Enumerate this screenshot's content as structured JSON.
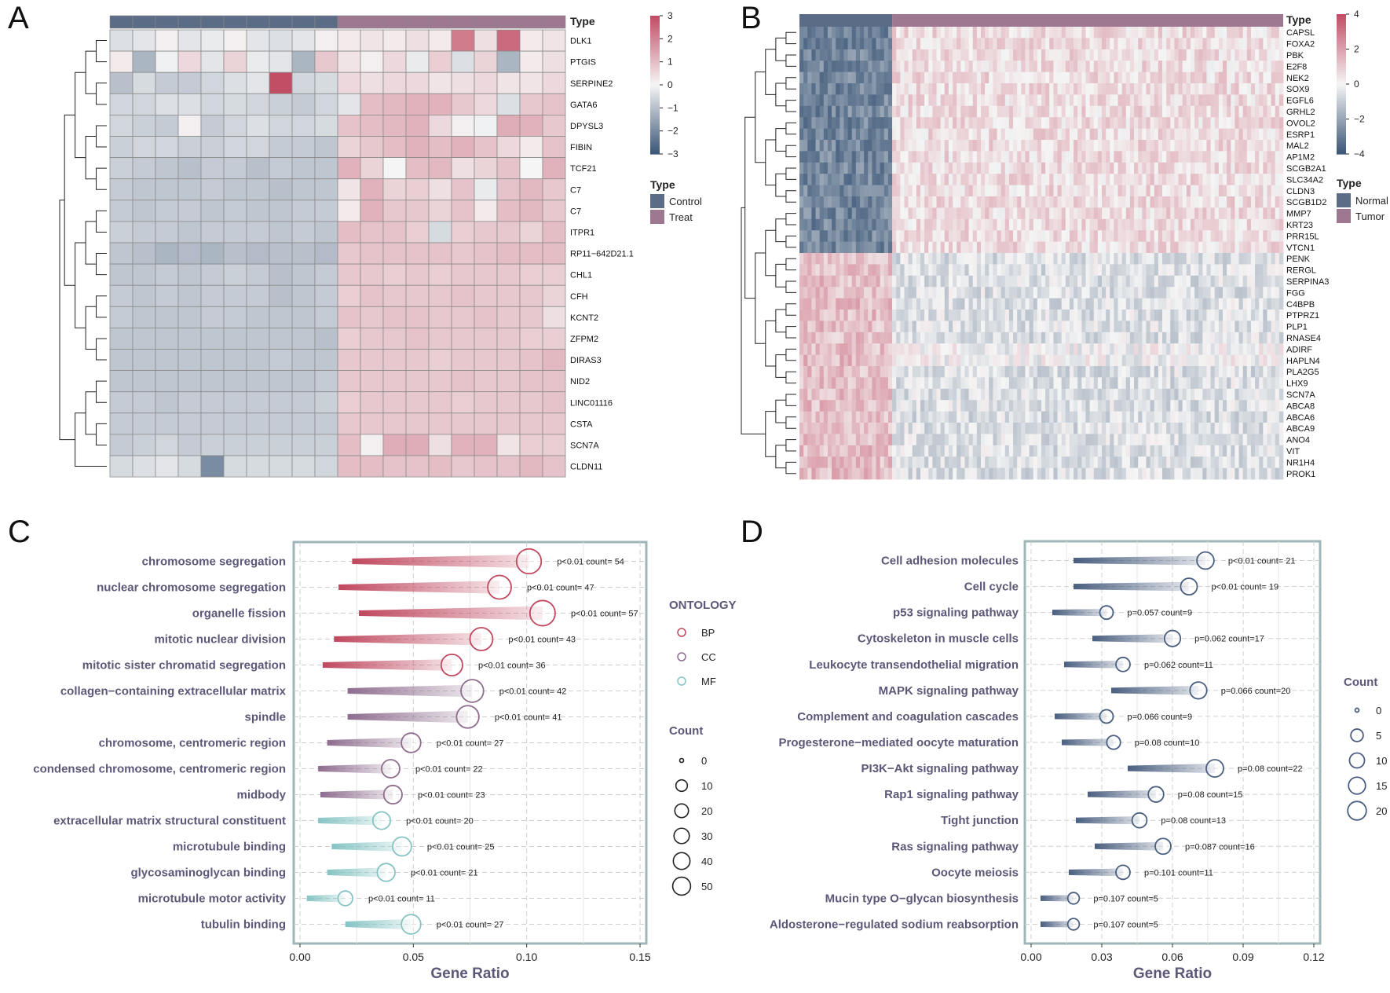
{
  "panels": {
    "a": "A",
    "b": "B",
    "c": "C",
    "d": "D"
  },
  "chart_data": [
    {
      "panel": "A",
      "type": "heatmap",
      "column_annotation_title": "Type",
      "groups": [
        {
          "name": "Control",
          "color": "#5b6d86",
          "n": 10
        },
        {
          "name": "Treat",
          "color": "#9e7890",
          "n": 10
        }
      ],
      "genes": [
        "DLK1",
        "PTGIS",
        "SERPINE2",
        "GATA6",
        "DPYSL3",
        "FIBIN",
        "TCF21",
        "C7",
        "C7",
        "ITPR1",
        "RP11−642D21.1",
        "CHL1",
        "CFH",
        "KCNT2",
        "ZFPM2",
        "DIRAS3",
        "NID2",
        "LINC01116",
        "CSTA",
        "SCN7A",
        "CLDN11"
      ],
      "values": [
        [
          -0.4,
          -0.3,
          0.1,
          -0.3,
          -0.2,
          0.1,
          -0.3,
          -0.4,
          -0.3,
          0.1,
          0.2,
          0.3,
          0.2,
          0.4,
          0.2,
          2.2,
          0.4,
          2.5,
          0.2,
          0.3
        ],
        [
          0.2,
          -1.2,
          -0.1,
          0.5,
          -0.3,
          0.6,
          -0.2,
          -0.3,
          -1.2,
          0.8,
          0.3,
          0.1,
          0.5,
          -0.2,
          0.7,
          -0.4,
          0.6,
          -1.2,
          0.2,
          0.4
        ],
        [
          -1.0,
          -0.5,
          -0.8,
          -0.8,
          -0.6,
          -0.4,
          -0.3,
          3.0,
          -0.6,
          -0.5,
          0.5,
          0.4,
          0.5,
          0.5,
          0.3,
          0.4,
          0.5,
          0.3,
          0.3,
          0.5
        ],
        [
          -0.6,
          -0.6,
          -0.4,
          -0.4,
          -0.6,
          -0.5,
          -0.6,
          -0.7,
          -0.8,
          -0.6,
          -0.3,
          1.0,
          1.1,
          1.2,
          1.2,
          0.8,
          0.5,
          -0.4,
          0.8,
          0.9
        ],
        [
          -0.6,
          -0.7,
          -0.8,
          0.1,
          -0.8,
          -0.6,
          -0.4,
          -0.6,
          -0.6,
          -0.5,
          0.9,
          1.0,
          1.1,
          1.2,
          0.5,
          0.1,
          -0.1,
          1.3,
          1.2,
          0.8
        ],
        [
          -0.7,
          -0.6,
          -0.6,
          -0.7,
          -0.7,
          -0.6,
          -0.6,
          -0.8,
          -0.8,
          -0.9,
          0.6,
          0.8,
          1.0,
          1.2,
          1.0,
          1.2,
          0.9,
          0.5,
          0.2,
          0.9
        ],
        [
          -0.7,
          -0.8,
          -0.9,
          -1.0,
          -0.8,
          -0.8,
          -1.0,
          -0.8,
          -0.9,
          -0.9,
          1.2,
          0.6,
          0.0,
          1.0,
          1.1,
          0.4,
          0.6,
          0.9,
          0.0,
          1.2
        ],
        [
          -0.8,
          -0.9,
          -0.9,
          -0.9,
          -0.8,
          -0.9,
          -0.9,
          -1.0,
          -0.9,
          -0.9,
          0.3,
          1.2,
          0.6,
          0.7,
          0.4,
          0.9,
          -0.2,
          0.9,
          1.1,
          0.8
        ],
        [
          -0.8,
          -0.9,
          -0.8,
          -0.8,
          -0.9,
          -0.8,
          -0.9,
          -0.9,
          -0.8,
          -0.8,
          0.2,
          1.2,
          0.8,
          0.8,
          0.6,
          0.9,
          0.2,
          1.0,
          1.1,
          0.8
        ],
        [
          -0.7,
          -0.8,
          -0.8,
          -0.9,
          -0.8,
          -0.8,
          -0.8,
          -0.9,
          -0.8,
          -0.9,
          1.0,
          0.9,
          0.9,
          0.7,
          -0.5,
          0.7,
          0.8,
          0.8,
          0.6,
          1.0
        ],
        [
          -0.9,
          -1.0,
          -1.2,
          -1.1,
          -1.2,
          -1.0,
          -1.1,
          -1.0,
          -1.0,
          -1.1,
          0.8,
          0.9,
          0.9,
          0.9,
          0.9,
          0.8,
          0.9,
          1.0,
          1.0,
          1.0
        ],
        [
          -0.9,
          -0.9,
          -0.8,
          -0.9,
          -0.8,
          -0.7,
          -0.8,
          -1.0,
          -0.9,
          -0.8,
          0.8,
          0.8,
          0.7,
          0.8,
          0.7,
          0.8,
          0.8,
          0.8,
          0.7,
          0.7
        ],
        [
          -0.8,
          -0.9,
          -0.8,
          -0.9,
          -0.8,
          -0.8,
          -0.8,
          -1.0,
          -0.9,
          -0.8,
          0.7,
          0.9,
          0.8,
          0.8,
          0.8,
          0.9,
          0.8,
          0.8,
          0.8,
          0.6
        ],
        [
          -0.8,
          -0.9,
          -0.9,
          -0.9,
          -0.8,
          -0.8,
          -0.9,
          -0.9,
          -0.9,
          -0.8,
          0.9,
          0.8,
          0.9,
          0.9,
          0.8,
          0.8,
          0.9,
          0.8,
          0.8,
          0.4
        ],
        [
          -0.9,
          -0.9,
          -0.9,
          -0.9,
          -0.9,
          -0.9,
          -0.9,
          -0.9,
          -0.9,
          -1.0,
          0.7,
          0.8,
          0.8,
          0.9,
          0.8,
          0.8,
          0.8,
          0.8,
          0.7,
          0.7
        ],
        [
          -0.9,
          -0.9,
          -0.9,
          -0.9,
          -0.9,
          -0.9,
          -0.9,
          -0.8,
          -0.9,
          -0.9,
          0.8,
          0.8,
          0.8,
          0.8,
          0.7,
          0.8,
          0.8,
          0.8,
          0.9,
          1.1
        ],
        [
          -0.9,
          -0.9,
          -0.9,
          -0.9,
          -0.9,
          -0.9,
          -0.9,
          -0.9,
          -0.9,
          -0.8,
          0.8,
          0.8,
          0.8,
          0.8,
          0.8,
          0.9,
          0.8,
          0.8,
          0.9,
          0.9
        ],
        [
          -0.8,
          -0.8,
          -0.9,
          -0.8,
          -0.8,
          -0.8,
          -0.8,
          -0.8,
          -0.8,
          -0.7,
          0.7,
          0.8,
          0.8,
          0.8,
          0.8,
          0.7,
          0.8,
          0.8,
          0.8,
          0.9
        ],
        [
          -0.8,
          -0.8,
          -0.8,
          -0.8,
          -0.8,
          -0.8,
          -0.8,
          -0.8,
          -0.8,
          -0.8,
          0.8,
          0.8,
          0.8,
          0.8,
          0.8,
          0.8,
          0.8,
          0.8,
          0.8,
          0.8
        ],
        [
          -0.8,
          -0.7,
          -0.6,
          -0.8,
          -0.7,
          -0.7,
          -0.7,
          -0.7,
          -0.7,
          -0.7,
          1.0,
          0.1,
          1.3,
          1.3,
          0.4,
          1.2,
          1.2,
          0.3,
          0.7,
          0.7
        ],
        [
          -0.5,
          -0.4,
          -0.3,
          -0.5,
          -2.0,
          -0.5,
          -0.5,
          -0.5,
          -0.5,
          -0.6,
          1.0,
          1.0,
          0.9,
          0.9,
          1.0,
          0.8,
          0.9,
          0.9,
          1.1,
          0.9
        ]
      ],
      "colorbar": {
        "ticks": [
          "3",
          "2",
          "1",
          "0",
          "−1",
          "−2",
          "−3"
        ],
        "min": -3,
        "max": 3
      },
      "colors": {
        "low": "#3d5878",
        "mid": "#f5f5f5",
        "high": "#c24e66"
      }
    },
    {
      "panel": "B",
      "type": "heatmap",
      "column_annotation_title": "Type",
      "groups": [
        {
          "name": "Normal",
          "color": "#5b6d86"
        },
        {
          "name": "Tumor",
          "color": "#9e7890"
        }
      ],
      "up_in_normal_genes": [
        "CAPSL",
        "FOXA2",
        "PBK",
        "E2F8",
        "NEK2",
        "SOX9",
        "EGFL6",
        "GRHL2",
        "OVOL2",
        "ESRP1",
        "MAL2",
        "AP1M2",
        "SCGB2A1",
        "SLC34A2",
        "CLDN3",
        "SCGB1D2",
        "MMP7",
        "KRT23",
        "PRR15L",
        "VTCN1"
      ],
      "down_in_normal_genes": [
        "PENK",
        "RERGL",
        "SERPINA3",
        "FGG",
        "C4BPB",
        "PTPRZ1",
        "PLP1",
        "RNASE4",
        "ADIRF",
        "HAPLN4",
        "PLA2G5",
        "LHX9",
        "SCN7A",
        "ABCA8",
        "ABCA6",
        "ABCA9",
        "ANO4",
        "VIT",
        "NR1H4",
        "PROK1"
      ],
      "colorbar": {
        "ticks": [
          "4",
          "2",
          "0",
          "−2",
          "−4"
        ],
        "min": -4,
        "max": 4
      }
    },
    {
      "panel": "C",
      "type": "scatter",
      "subtype": "lollipop-dotplot",
      "xlabel": "Gene Ratio",
      "xlim": [
        0,
        0.15
      ],
      "xticks": [
        "0.00",
        "0.05",
        "0.10",
        "0.15"
      ],
      "legend_ontology_title": "ONTOLOGY",
      "ontology_colors": {
        "BP": "#c0485f",
        "CC": "#8e6d8e",
        "MF": "#86c4c4"
      },
      "legend_count_title": "Count",
      "count_legend_values": [
        "0",
        "10",
        "20",
        "30",
        "40",
        "50"
      ],
      "series": [
        {
          "term": "chromosome segregation",
          "ontology": "BP",
          "ratio": 0.101,
          "start": 0.023,
          "count": 54,
          "label": "p<0.01 count= 54"
        },
        {
          "term": "nuclear chromosome segregation",
          "ontology": "BP",
          "ratio": 0.088,
          "start": 0.017,
          "count": 47,
          "label": "p<0.01 count= 47"
        },
        {
          "term": "organelle fission",
          "ontology": "BP",
          "ratio": 0.107,
          "start": 0.026,
          "count": 57,
          "label": "p<0.01 count= 57"
        },
        {
          "term": "mitotic nuclear division",
          "ontology": "BP",
          "ratio": 0.08,
          "start": 0.015,
          "count": 43,
          "label": "p<0.01 count= 43"
        },
        {
          "term": "mitotic sister chromatid segregation",
          "ontology": "BP",
          "ratio": 0.067,
          "start": 0.01,
          "count": 36,
          "label": "p<0.01 count= 36"
        },
        {
          "term": "collagen−containing extracellular matrix",
          "ontology": "CC",
          "ratio": 0.076,
          "start": 0.021,
          "count": 42,
          "label": "p<0.01 count= 42"
        },
        {
          "term": "spindle",
          "ontology": "CC",
          "ratio": 0.074,
          "start": 0.021,
          "count": 41,
          "label": "p<0.01 count= 41"
        },
        {
          "term": "chromosome, centromeric region",
          "ontology": "CC",
          "ratio": 0.049,
          "start": 0.012,
          "count": 27,
          "label": "p<0.01 count= 27"
        },
        {
          "term": "condensed chromosome, centromeric region",
          "ontology": "CC",
          "ratio": 0.04,
          "start": 0.008,
          "count": 22,
          "label": "p<0.01 count= 22"
        },
        {
          "term": "midbody",
          "ontology": "CC",
          "ratio": 0.041,
          "start": 0.009,
          "count": 23,
          "label": "p<0.01 count= 23"
        },
        {
          "term": "extracellular matrix structural constituent",
          "ontology": "MF",
          "ratio": 0.036,
          "start": 0.008,
          "count": 20,
          "label": "p<0.01 count= 20"
        },
        {
          "term": "microtubule binding",
          "ontology": "MF",
          "ratio": 0.045,
          "start": 0.014,
          "count": 25,
          "label": "p<0.01 count= 25"
        },
        {
          "term": "glycosaminoglycan binding",
          "ontology": "MF",
          "ratio": 0.038,
          "start": 0.012,
          "count": 21,
          "label": "p<0.01 count= 21"
        },
        {
          "term": "microtubule motor activity",
          "ontology": "MF",
          "ratio": 0.02,
          "start": 0.003,
          "count": 11,
          "label": "p<0.01 count= 11"
        },
        {
          "term": "tubulin binding",
          "ontology": "MF",
          "ratio": 0.049,
          "start": 0.02,
          "count": 27,
          "label": "p<0.01 count= 27"
        }
      ]
    },
    {
      "panel": "D",
      "type": "scatter",
      "subtype": "lollipop-dotplot",
      "xlabel": "Gene Ratio",
      "xlim": [
        0,
        0.12
      ],
      "xticks": [
        "0.00",
        "0.03",
        "0.06",
        "0.09",
        "0.12"
      ],
      "color": "#4a5f80",
      "legend_count_title": "Count",
      "count_legend_values": [
        "0",
        "5",
        "10",
        "15",
        "20"
      ],
      "series": [
        {
          "term": "Cell adhesion molecules",
          "ratio": 0.074,
          "start": 0.018,
          "count": 21,
          "label": "p<0.01 count= 21"
        },
        {
          "term": "Cell cycle",
          "ratio": 0.067,
          "start": 0.018,
          "count": 19,
          "label": "p<0.01 count= 19"
        },
        {
          "term": "p53 signaling pathway",
          "ratio": 0.032,
          "start": 0.009,
          "count": 9,
          "label": "p=0.057 count=9"
        },
        {
          "term": "Cytoskeleton in muscle cells",
          "ratio": 0.06,
          "start": 0.026,
          "count": 17,
          "label": "p=0.062 count=17"
        },
        {
          "term": "Leukocyte transendothelial migration",
          "ratio": 0.039,
          "start": 0.014,
          "count": 11,
          "label": "p=0.062 count=11"
        },
        {
          "term": "MAPK signaling pathway",
          "ratio": 0.071,
          "start": 0.034,
          "count": 20,
          "label": "p=0.066 count=20"
        },
        {
          "term": "Complement and coagulation cascades",
          "ratio": 0.032,
          "start": 0.01,
          "count": 9,
          "label": "p=0.066 count=9"
        },
        {
          "term": "Progesterone−mediated oocyte maturation",
          "ratio": 0.035,
          "start": 0.013,
          "count": 10,
          "label": "p=0.08 count=10"
        },
        {
          "term": "PI3K−Akt signaling pathway",
          "ratio": 0.078,
          "start": 0.041,
          "count": 22,
          "label": "p=0.08 count=22"
        },
        {
          "term": "Rap1 signaling pathway",
          "ratio": 0.053,
          "start": 0.024,
          "count": 15,
          "label": "p=0.08 count=15"
        },
        {
          "term": "Tight junction",
          "ratio": 0.046,
          "start": 0.019,
          "count": 13,
          "label": "p=0.08 count=13"
        },
        {
          "term": "Ras signaling pathway",
          "ratio": 0.056,
          "start": 0.027,
          "count": 16,
          "label": "p=0.087 count=16"
        },
        {
          "term": "Oocyte meiosis",
          "ratio": 0.039,
          "start": 0.016,
          "count": 11,
          "label": "p=0.101 count=11"
        },
        {
          "term": "Mucin type O−glycan biosynthesis",
          "ratio": 0.018,
          "start": 0.004,
          "count": 5,
          "label": "p=0.107 count=5"
        },
        {
          "term": "Aldosterone−regulated sodium reabsorption",
          "ratio": 0.018,
          "start": 0.004,
          "count": 5,
          "label": "p=0.107 count=5"
        }
      ]
    }
  ]
}
